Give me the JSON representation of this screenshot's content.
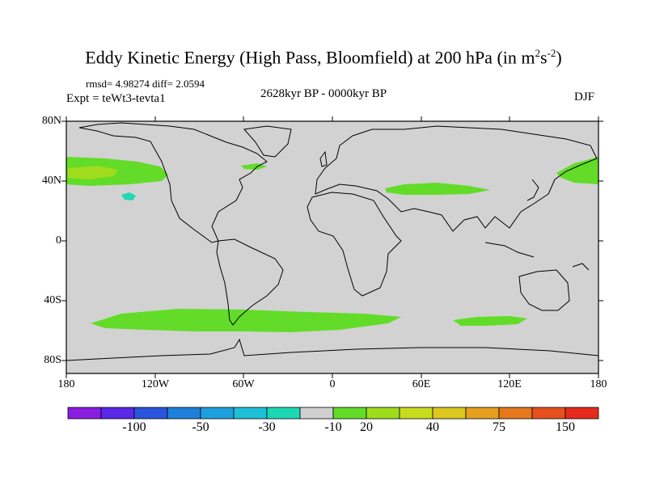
{
  "title": {
    "main": "Eddy Kinetic Energy (High Pass, Bloomfield) at 200 hPa (in m",
    "sup1": "2",
    "mid": "s",
    "sup2": "-2",
    "end": ")"
  },
  "stats": "rmsd= 4.98274  diff= 2.0594",
  "expt": "Expt = teWt3-tevta1",
  "period": "2628kyr BP - 0000kyr BP",
  "season": "DJF",
  "lat_labels": [
    "80N",
    "40N",
    "0",
    "40S",
    "80S"
  ],
  "lon_labels": [
    "180",
    "120W",
    "60W",
    "0",
    "60E",
    "120E",
    "180"
  ],
  "colorbar": {
    "colors": [
      "#8a1ee0",
      "#5a28e6",
      "#2a55dc",
      "#1f80dc",
      "#1ea0e0",
      "#1ec0d8",
      "#1ed8b4",
      "#d0d0d0",
      "#62dc28",
      "#a0dc1e",
      "#c8dc1e",
      "#dcc81e",
      "#e6a01e",
      "#e6781e",
      "#e6501e",
      "#e62a1e"
    ],
    "labels": [
      "-100",
      "-50",
      "-30",
      "-10",
      "20",
      "40",
      "75",
      "150"
    ]
  },
  "map": {
    "ocean_color": "#d2d2d2",
    "coast_color": "#000000"
  }
}
